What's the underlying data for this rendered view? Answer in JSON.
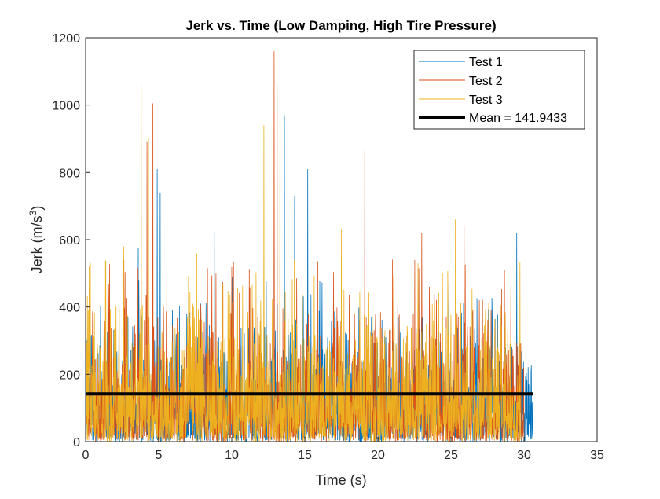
{
  "chart_data": {
    "type": "line",
    "title": "Jerk vs. Time (Low Damping, High Tire Pressure)",
    "xlabel": "Time (s)",
    "ylabel_base": "Jerk (m/s",
    "ylabel_sup": "3",
    "ylabel_close": ")",
    "xlim": [
      0,
      35
    ],
    "ylim": [
      0,
      1200
    ],
    "xticks": [
      0,
      5,
      10,
      15,
      20,
      25,
      30,
      35
    ],
    "yticks": [
      0,
      200,
      400,
      600,
      800,
      1000,
      1200
    ],
    "grid": false,
    "legend_position": "top-right",
    "series": [
      {
        "name": "Test 1",
        "color": "#0072BD",
        "t_end": 30.6,
        "typical_max": 300,
        "peaks": [
          [
            4.9,
            810
          ],
          [
            5.1,
            740
          ],
          [
            8.8,
            625
          ],
          [
            13.6,
            970
          ],
          [
            14.3,
            730
          ],
          [
            15.2,
            810
          ],
          [
            29.5,
            620
          ],
          [
            3.6,
            575
          ],
          [
            0.05,
            300
          ]
        ]
      },
      {
        "name": "Test 2",
        "color": "#D95319",
        "t_end": 30.0,
        "typical_max": 320,
        "peaks": [
          [
            4.6,
            1005
          ],
          [
            4.2,
            890
          ],
          [
            12.9,
            1160
          ],
          [
            13.1,
            1060
          ],
          [
            19.1,
            865
          ],
          [
            23.0,
            620
          ],
          [
            25.9,
            640
          ]
        ]
      },
      {
        "name": "Test 3",
        "color": "#EDB120",
        "t_end": 29.8,
        "typical_max": 330,
        "peaks": [
          [
            3.8,
            1060
          ],
          [
            4.3,
            900
          ],
          [
            12.2,
            940
          ],
          [
            13.3,
            1000
          ],
          [
            25.3,
            660
          ],
          [
            2.6,
            580
          ],
          [
            17.5,
            630
          ]
        ]
      }
    ],
    "mean": {
      "label": "Mean = 141.9433",
      "value": 141.9433,
      "t_start": 0,
      "t_end": 30.6,
      "color": "#000000"
    }
  }
}
